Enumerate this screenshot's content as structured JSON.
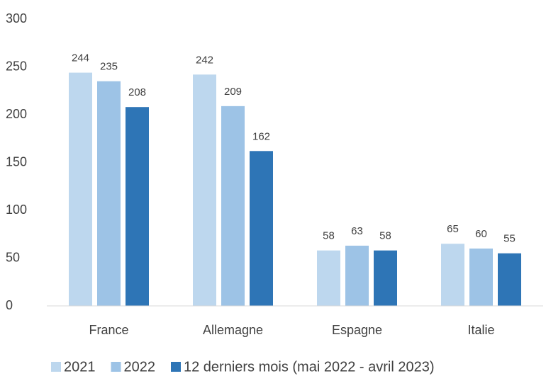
{
  "chart_data": {
    "type": "bar",
    "categories": [
      "France",
      "Allemagne",
      "Espagne",
      "Italie"
    ],
    "series": [
      {
        "name": "2021",
        "color": "#bdd7ee",
        "values": [
          244,
          242,
          58,
          65
        ]
      },
      {
        "name": "2022",
        "color": "#9dc3e6",
        "values": [
          235,
          209,
          63,
          60
        ]
      },
      {
        "name": "12 derniers mois (mai 2022 - avril 2023)",
        "color": "#2e75b6",
        "values": [
          208,
          162,
          58,
          55
        ]
      }
    ],
    "ylim": [
      0,
      300
    ],
    "yticks": [
      0,
      50,
      100,
      150,
      200,
      250,
      300
    ],
    "grid": false,
    "legend": "bottom"
  }
}
